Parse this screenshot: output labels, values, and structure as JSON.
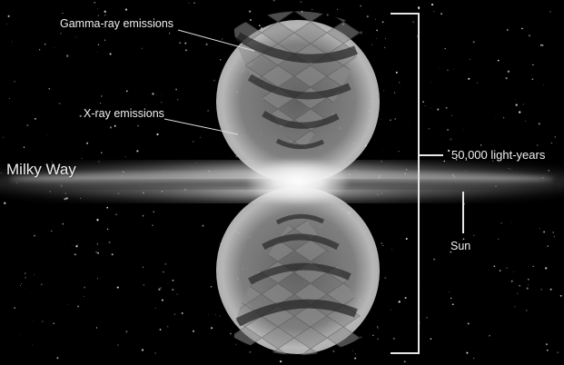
{
  "labels": {
    "gamma": "Gamma-ray emissions",
    "xray": "X-ray emissions",
    "galaxy": "Milky Way",
    "scale": "50,000 light-years",
    "sun": "Sun"
  },
  "colors": {
    "background": "#000000",
    "bubble": "#d8d8d8",
    "ribbon": "#111111",
    "text": "#efefef",
    "bracket": "#e6e6e6"
  }
}
